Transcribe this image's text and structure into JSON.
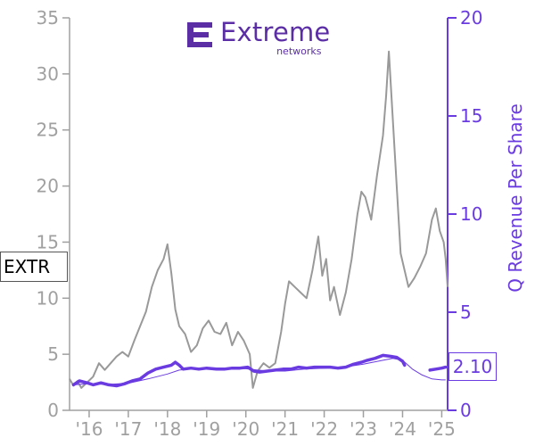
{
  "logo": {
    "name": "Extreme",
    "sub": "networks",
    "color": "#5b2ea6"
  },
  "ticker": "EXTR",
  "last_value_label": "2.10",
  "colors": {
    "price": "#999999",
    "revenue": "#6a3be0",
    "axis_left": "#a0a0a0",
    "axis_right": "#6a3be0"
  },
  "chart_data": {
    "type": "line",
    "title": "",
    "xlabel": "",
    "ylabel_left": "",
    "ylabel_right": "Q Revenue Per Share",
    "x_ticks": [
      "'16",
      "'17",
      "'18",
      "'19",
      "'20",
      "'21",
      "'22",
      "'23",
      "'24",
      "'25"
    ],
    "x_tick_years": [
      2016,
      2017,
      2018,
      2019,
      2020,
      2021,
      2022,
      2023,
      2024,
      2025
    ],
    "xlim": [
      2015.5,
      2025.15
    ],
    "y_left_lim": [
      0,
      35
    ],
    "y_left_ticks": [
      "0",
      "5",
      "10",
      "15",
      "20",
      "25",
      "30",
      "35"
    ],
    "y_right_lim": [
      0,
      20
    ],
    "y_right_ticks": [
      "0",
      "5",
      "10",
      "15",
      "20"
    ],
    "grid": false,
    "series": [
      {
        "axis": "left",
        "points": [
          [
            2015.5,
            2.8
          ],
          [
            2015.6,
            2.2
          ],
          [
            2015.7,
            2.6
          ],
          [
            2015.8,
            2.0
          ],
          [
            2015.95,
            2.5
          ],
          [
            2016.1,
            3.0
          ],
          [
            2016.25,
            4.2
          ],
          [
            2016.4,
            3.6
          ],
          [
            2016.55,
            4.2
          ],
          [
            2016.7,
            4.8
          ],
          [
            2016.85,
            5.2
          ],
          [
            2017.0,
            4.8
          ],
          [
            2017.15,
            6.2
          ],
          [
            2017.3,
            7.5
          ],
          [
            2017.45,
            8.8
          ],
          [
            2017.6,
            11.0
          ],
          [
            2017.75,
            12.5
          ],
          [
            2017.9,
            13.5
          ],
          [
            2018.0,
            14.8
          ],
          [
            2018.1,
            12.2
          ],
          [
            2018.2,
            9.0
          ],
          [
            2018.3,
            7.5
          ],
          [
            2018.45,
            6.8
          ],
          [
            2018.6,
            5.2
          ],
          [
            2018.75,
            5.8
          ],
          [
            2018.9,
            7.3
          ],
          [
            2019.05,
            8.0
          ],
          [
            2019.2,
            7.0
          ],
          [
            2019.35,
            6.8
          ],
          [
            2019.5,
            7.8
          ],
          [
            2019.65,
            5.8
          ],
          [
            2019.8,
            7.0
          ],
          [
            2019.95,
            6.2
          ],
          [
            2020.1,
            5.0
          ],
          [
            2020.18,
            2.0
          ],
          [
            2020.3,
            3.5
          ],
          [
            2020.45,
            4.2
          ],
          [
            2020.6,
            3.8
          ],
          [
            2020.75,
            4.2
          ],
          [
            2020.9,
            7.0
          ],
          [
            2021.0,
            9.5
          ],
          [
            2021.1,
            11.5
          ],
          [
            2021.25,
            11.0
          ],
          [
            2021.4,
            10.5
          ],
          [
            2021.55,
            10.0
          ],
          [
            2021.7,
            12.5
          ],
          [
            2021.85,
            15.5
          ],
          [
            2021.95,
            12.0
          ],
          [
            2022.05,
            13.5
          ],
          [
            2022.15,
            9.8
          ],
          [
            2022.25,
            11.0
          ],
          [
            2022.4,
            8.5
          ],
          [
            2022.55,
            10.5
          ],
          [
            2022.7,
            13.5
          ],
          [
            2022.85,
            17.5
          ],
          [
            2022.95,
            19.5
          ],
          [
            2023.05,
            19.0
          ],
          [
            2023.2,
            17.0
          ],
          [
            2023.35,
            21.0
          ],
          [
            2023.5,
            24.5
          ],
          [
            2023.58,
            28.0
          ],
          [
            2023.65,
            32.0
          ],
          [
            2023.75,
            26.0
          ],
          [
            2023.85,
            20.0
          ],
          [
            2023.95,
            14.0
          ],
          [
            2024.05,
            12.5
          ],
          [
            2024.15,
            11.0
          ],
          [
            2024.3,
            11.8
          ],
          [
            2024.45,
            12.8
          ],
          [
            2024.6,
            14.0
          ],
          [
            2024.75,
            17.0
          ],
          [
            2024.85,
            18.0
          ],
          [
            2024.95,
            16.0
          ],
          [
            2025.05,
            15.0
          ],
          [
            2025.1,
            13.5
          ],
          [
            2025.15,
            11.0
          ]
        ]
      },
      {
        "axis": "right",
        "segments": [
          [
            [
              2015.6,
              1.3
            ],
            [
              2015.75,
              1.5
            ],
            [
              2015.95,
              1.4
            ],
            [
              2016.1,
              1.3
            ],
            [
              2016.3,
              1.4
            ],
            [
              2016.5,
              1.3
            ],
            [
              2016.7,
              1.25
            ],
            [
              2016.9,
              1.35
            ],
            [
              2017.1,
              1.5
            ],
            [
              2017.3,
              1.6
            ],
            [
              2017.5,
              1.9
            ],
            [
              2017.7,
              2.1
            ],
            [
              2017.9,
              2.2
            ],
            [
              2018.1,
              2.3
            ],
            [
              2018.2,
              2.45
            ],
            [
              2018.3,
              2.3
            ],
            [
              2018.4,
              2.1
            ],
            [
              2018.6,
              2.15
            ],
            [
              2018.8,
              2.1
            ],
            [
              2019.0,
              2.15
            ],
            [
              2019.25,
              2.1
            ],
            [
              2019.45,
              2.1
            ],
            [
              2019.65,
              2.15
            ],
            [
              2019.85,
              2.15
            ],
            [
              2020.05,
              2.2
            ],
            [
              2020.2,
              2.0
            ],
            [
              2020.35,
              1.95
            ],
            [
              2020.55,
              2.0
            ],
            [
              2020.75,
              2.05
            ],
            [
              2020.95,
              2.1
            ],
            [
              2021.15,
              2.1
            ],
            [
              2021.35,
              2.2
            ],
            [
              2021.55,
              2.15
            ],
            [
              2021.75,
              2.2
            ],
            [
              2021.95,
              2.2
            ],
            [
              2022.15,
              2.2
            ],
            [
              2022.35,
              2.15
            ],
            [
              2022.55,
              2.2
            ],
            [
              2022.75,
              2.35
            ],
            [
              2022.95,
              2.45
            ],
            [
              2023.1,
              2.55
            ],
            [
              2023.3,
              2.65
            ],
            [
              2023.5,
              2.8
            ],
            [
              2023.7,
              2.75
            ],
            [
              2023.85,
              2.7
            ],
            [
              2024.0,
              2.5
            ],
            [
              2024.05,
              2.3
            ]
          ],
          [
            [
              2024.7,
              2.05
            ],
            [
              2024.85,
              2.1
            ],
            [
              2025.0,
              2.15
            ],
            [
              2025.1,
              2.2
            ]
          ]
        ]
      },
      {
        "axis": "right",
        "points": [
          [
            2015.6,
            1.3
          ],
          [
            2016.0,
            1.35
          ],
          [
            2016.5,
            1.32
          ],
          [
            2017.0,
            1.38
          ],
          [
            2017.5,
            1.6
          ],
          [
            2018.0,
            1.85
          ],
          [
            2018.3,
            2.05
          ],
          [
            2018.6,
            2.1
          ],
          [
            2019.0,
            2.12
          ],
          [
            2019.5,
            2.12
          ],
          [
            2020.0,
            2.12
          ],
          [
            2020.3,
            2.05
          ],
          [
            2020.6,
            2.0
          ],
          [
            2021.0,
            2.0
          ],
          [
            2021.5,
            2.1
          ],
          [
            2022.0,
            2.15
          ],
          [
            2022.5,
            2.2
          ],
          [
            2023.0,
            2.35
          ],
          [
            2023.5,
            2.55
          ],
          [
            2023.75,
            2.65
          ],
          [
            2024.0,
            2.55
          ],
          [
            2024.25,
            2.1
          ],
          [
            2024.5,
            1.8
          ],
          [
            2024.75,
            1.6
          ],
          [
            2025.0,
            1.55
          ],
          [
            2025.1,
            1.55
          ]
        ]
      }
    ]
  }
}
